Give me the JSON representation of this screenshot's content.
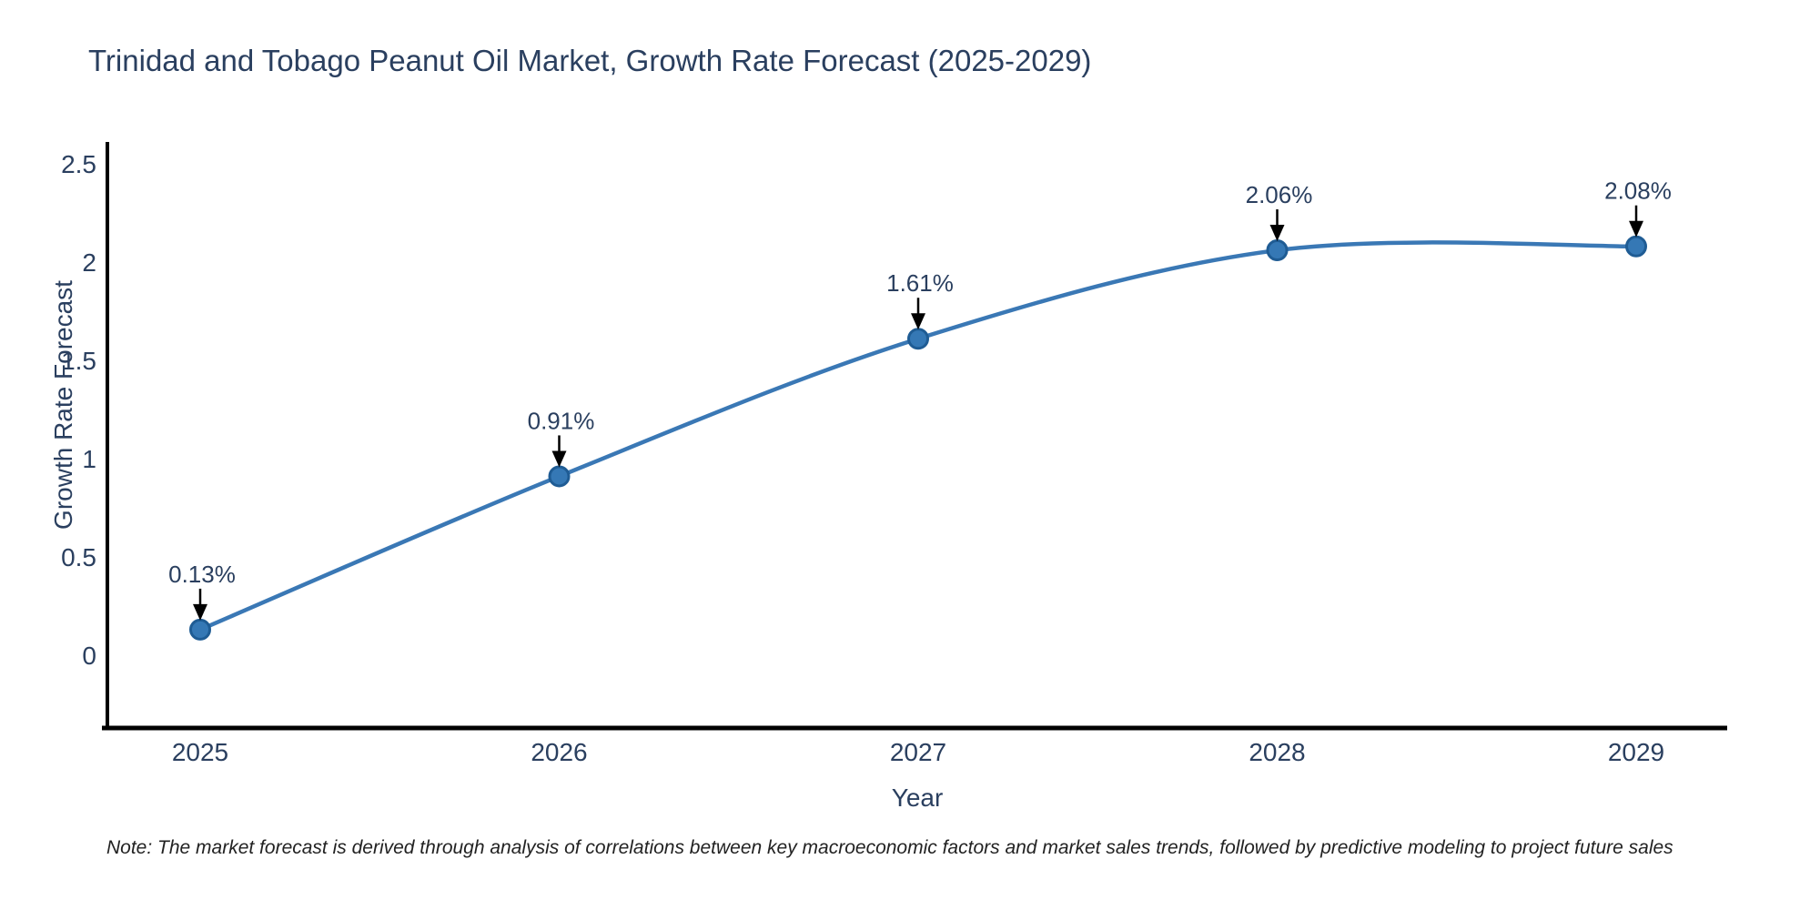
{
  "title": {
    "text": "Trinidad and Tobago Peanut Oil Market, Growth Rate Forecast (2025-2029)"
  },
  "note": {
    "text": "Note: The market forecast is derived through analysis of correlations between key macroeconomic factors and market sales trends, followed by predictive modeling to project future sales"
  },
  "chart_data": {
    "type": "line",
    "title": "Trinidad and Tobago Peanut Oil Market, Growth Rate Forecast (2025-2029)",
    "xlabel": "Year",
    "ylabel": "Growth Rate Forecast",
    "categories": [
      "2025",
      "2026",
      "2027",
      "2028",
      "2029"
    ],
    "values": [
      0.13,
      0.91,
      1.61,
      2.06,
      2.08
    ],
    "point_labels": [
      "0.13%",
      "0.91%",
      "1.61%",
      "2.06%",
      "2.08%"
    ],
    "ytick_values": [
      0,
      0.5,
      1,
      1.5,
      2,
      2.5
    ],
    "ytick_labels": [
      "0",
      "0.5",
      "1",
      "1.5",
      "2",
      "2.5"
    ],
    "ylim": [
      -0.37,
      2.6
    ],
    "grid": false,
    "legend": "none",
    "line_style": "smooth-spline",
    "colors": {
      "line": "#3a78b5",
      "marker_fill": "#3578b5",
      "marker_edge": "#1f5c94",
      "axis": "#000000",
      "annotation_arrow": "#000000",
      "annotation_text": "#2a3f5f",
      "tick_text": "#2a3f5f",
      "title_text": "#2a3f5f"
    }
  }
}
